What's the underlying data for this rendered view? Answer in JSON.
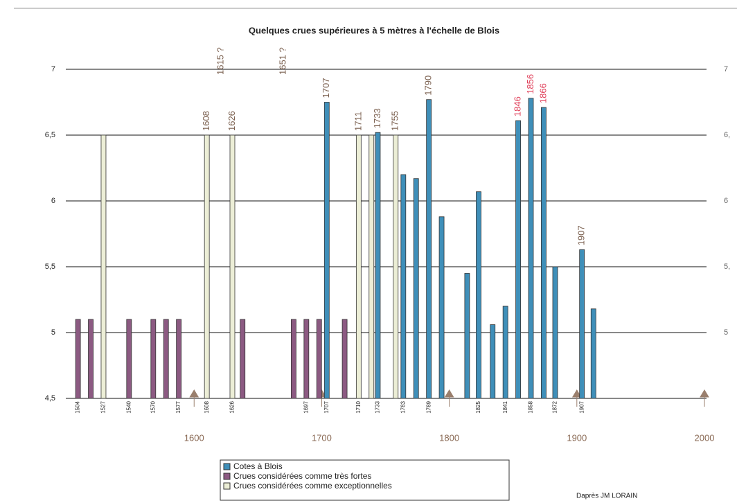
{
  "chart_data": {
    "type": "bar",
    "title": "Quelques crues supérieures à 5 mètres à l'échelle de Blois",
    "source": "Daprès JM LORAIN",
    "xlim": [
      1494,
      2000
    ],
    "xticks": [
      1600,
      1700,
      1800,
      1900,
      2000
    ],
    "ylim": [
      4.5,
      7
    ],
    "yticks": [
      {
        "value": 4.5,
        "label": "4,5"
      },
      5,
      {
        "value": 5.5,
        "label": "5,5"
      },
      6,
      {
        "value": 6.5,
        "label": "6,5"
      },
      7
    ],
    "y2ticks": [
      {
        "value": 7,
        "label": "7"
      },
      {
        "value": 6.5,
        "label": "6,"
      },
      {
        "value": 6,
        "label": "6"
      },
      {
        "value": 5.5,
        "label": "5,"
      },
      {
        "value": 5,
        "label": "5"
      }
    ],
    "grid": true,
    "series": [
      {
        "name": "Cotes à Blois",
        "color": "#3f8fb9",
        "x": [
          1704,
          1744,
          1764,
          1774,
          1784,
          1794,
          1814,
          1823,
          1834,
          1844,
          1854,
          1864,
          1874,
          1883,
          1904,
          1913
        ],
        "values": [
          6.75,
          6.52,
          6.2,
          6.17,
          6.77,
          5.88,
          5.45,
          6.07,
          5.06,
          5.2,
          6.61,
          6.78,
          6.71,
          5.5,
          5.63,
          5.18
        ],
        "bar_labels": [
          "1707",
          "1733",
          "1783",
          null,
          "1789",
          null,
          null,
          "1825",
          null,
          "1841",
          null,
          "1858",
          null,
          "1872",
          "1907",
          null
        ],
        "top_labels": [
          "1707",
          "1733",
          null,
          null,
          "1790",
          null,
          null,
          null,
          null,
          null,
          "1846",
          "1856",
          "1866",
          null,
          "1907",
          null
        ],
        "top_label_colors": [
          null,
          null,
          null,
          null,
          null,
          null,
          null,
          null,
          null,
          null,
          "#e0405a",
          "#e0405a",
          "#e0405a",
          null,
          null,
          null
        ]
      },
      {
        "name": "Crues considérées comme très fortes",
        "color": "#8c5a82",
        "x": [
          1509,
          1519,
          1549,
          1568,
          1578,
          1588,
          1638,
          1678,
          1688,
          1698,
          1718
        ],
        "values": [
          5.1,
          5.1,
          5.1,
          5.1,
          5.1,
          5.1,
          5.1,
          5.1,
          5.1,
          5.1,
          5.1
        ],
        "bar_labels": [
          "1504",
          null,
          "1540",
          "1570",
          null,
          "1577",
          null,
          null,
          "1697",
          null,
          null
        ],
        "top_labels": [
          null,
          null,
          null,
          null,
          null,
          null,
          null,
          null,
          null,
          null,
          null
        ],
        "top_label_colors": [
          null,
          null,
          null,
          null,
          null,
          null,
          null,
          null,
          null,
          null,
          null
        ]
      },
      {
        "name": "Crues considérées comme exceptionnelles",
        "color": "#eceed6",
        "x": [
          1529,
          1610,
          1630,
          1729,
          1739,
          1758
        ],
        "values": [
          6.5,
          6.5,
          6.5,
          6.5,
          6.5,
          6.5
        ],
        "bar_labels": [
          "1527",
          "1608",
          "1626",
          "1710",
          null,
          null
        ],
        "top_labels": [
          null,
          "1608",
          "1626",
          "1711",
          null,
          "1755"
        ],
        "top_label_colors": [
          null,
          null,
          null,
          null,
          null,
          null
        ]
      }
    ],
    "annotations": [
      {
        "text": "1615 ?",
        "x": 1621
      },
      {
        "text": "1651 ?",
        "x": 1670
      }
    ]
  }
}
